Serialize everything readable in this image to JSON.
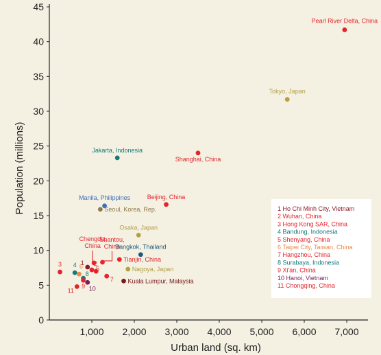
{
  "chart_data": {
    "type": "scatter",
    "title": "",
    "xlabel": "Urban land (sq. km)",
    "ylabel": "Population (millions)",
    "xlim": [
      0,
      7500
    ],
    "ylim": [
      0,
      45
    ],
    "x_ticks": [
      1000,
      2000,
      3000,
      4000,
      5000,
      6000,
      7000
    ],
    "x_tick_labels": [
      "1,000",
      "2,000",
      "3,000",
      "4,000",
      "5,000",
      "6,000",
      "7,000"
    ],
    "y_ticks": [
      0,
      5,
      10,
      15,
      20,
      25,
      30,
      35,
      40,
      45
    ],
    "y_tick_labels": [
      "0",
      "5",
      "10",
      "15",
      "20",
      "25",
      "30",
      "35",
      "40",
      "45"
    ],
    "grid": false,
    "legend_position": "bottom-right",
    "points": [
      {
        "label": "Pearl River Delta, China",
        "x": 6950,
        "y": 41.7,
        "color": "#e4242b"
      },
      {
        "label": "Tokyo, Japan",
        "x": 5600,
        "y": 31.7,
        "color": "#b5a042"
      },
      {
        "label": "Shanghai, China",
        "x": 3500,
        "y": 24.0,
        "color": "#e4242b"
      },
      {
        "label": "Jakarta, Indonesia",
        "x": 1600,
        "y": 23.3,
        "color": "#137a77"
      },
      {
        "label": "Beijing, China",
        "x": 2750,
        "y": 16.6,
        "color": "#e4242b"
      },
      {
        "label": "Manila, Philippines",
        "x": 1300,
        "y": 16.4,
        "color": "#3e6fb7"
      },
      {
        "label": "Seoul, Korea, Rep.",
        "x": 1200,
        "y": 15.9,
        "color": "#8f7a4c"
      },
      {
        "label": "Osaka, Japan",
        "x": 2100,
        "y": 12.2,
        "color": "#b5a042"
      },
      {
        "label": "Bangkok, Thailand",
        "x": 2150,
        "y": 9.4,
        "color": "#1c5a7a"
      },
      {
        "label": "Tianjin, China",
        "x": 1650,
        "y": 8.7,
        "color": "#e4242b"
      },
      {
        "label": "Nagoya, Japan",
        "x": 1850,
        "y": 7.3,
        "color": "#b5a042"
      },
      {
        "label": "Kuala Lumpur, Malaysia",
        "x": 1750,
        "y": 5.6,
        "color": "#7a1a1a"
      },
      {
        "label": "Chengdu, China",
        "x": 1050,
        "y": 8.2,
        "color": "#e4242b"
      },
      {
        "label": "Shantou, China",
        "x": 1250,
        "y": 8.3,
        "color": "#e4242b"
      },
      {
        "label": "1",
        "x": 900,
        "y": 7.6,
        "color": "#8a1a2a"
      },
      {
        "label": "2",
        "x": 1100,
        "y": 7.0,
        "color": "#e4242b"
      },
      {
        "label": "3",
        "x": 250,
        "y": 6.9,
        "color": "#e4242b"
      },
      {
        "label": "4",
        "x": 600,
        "y": 6.8,
        "color": "#137a77"
      },
      {
        "label": "5",
        "x": 1000,
        "y": 7.2,
        "color": "#e4242b"
      },
      {
        "label": "6",
        "x": 700,
        "y": 6.6,
        "color": "#e88a4a"
      },
      {
        "label": "7",
        "x": 1350,
        "y": 6.3,
        "color": "#e4242b"
      },
      {
        "label": "8",
        "x": 800,
        "y": 6.0,
        "color": "#137a77"
      },
      {
        "label": "9",
        "x": 800,
        "y": 5.7,
        "color": "#e4242b"
      },
      {
        "label": "10",
        "x": 900,
        "y": 5.4,
        "color": "#7a1a5a"
      },
      {
        "label": "11",
        "x": 650,
        "y": 4.8,
        "color": "#e4242b"
      }
    ],
    "legend": [
      {
        "text": "1 Ho Chi Minh City, Vietnam",
        "color": "#8a1a2a"
      },
      {
        "text": "2 Wuhan, China",
        "color": "#e4242b"
      },
      {
        "text": "3 Hong Kong SAR, China",
        "color": "#e4242b"
      },
      {
        "text": "4 Bandung, Indonesia",
        "color": "#137a77"
      },
      {
        "text": "5 Shenyang, China",
        "color": "#e4242b"
      },
      {
        "text": "6 Taipei City, Taiwan, China",
        "color": "#e88a4a"
      },
      {
        "text": "7 Hangzhou, China",
        "color": "#e4242b"
      },
      {
        "text": "8 Surabaya, Indonesia",
        "color": "#137a77"
      },
      {
        "text": "9 Xi'an, China",
        "color": "#e4242b"
      },
      {
        "text": "10 Hanoi, Vietnam",
        "color": "#7a1a5a"
      },
      {
        "text": "11 Chongqing, China",
        "color": "#e4242b"
      }
    ]
  }
}
